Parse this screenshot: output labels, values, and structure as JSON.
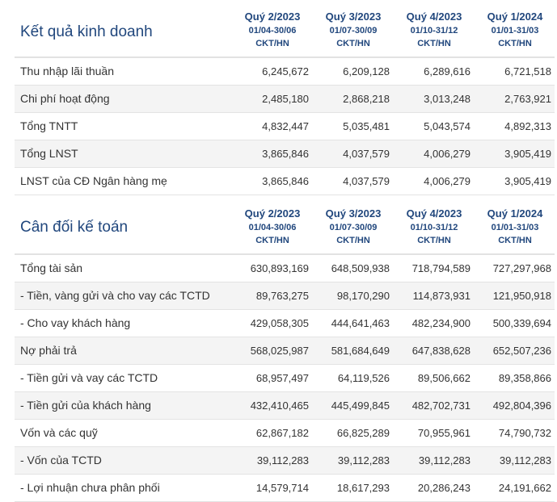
{
  "quarters": [
    {
      "name": "Quý 2/2023",
      "range": "01/04-30/06",
      "unit": "CKT/HN"
    },
    {
      "name": "Quý 3/2023",
      "range": "01/07-30/09",
      "unit": "CKT/HN"
    },
    {
      "name": "Quý 4/2023",
      "range": "01/10-31/12",
      "unit": "CKT/HN"
    },
    {
      "name": "Quý 1/2024",
      "range": "01/01-31/03",
      "unit": "CKT/HN"
    }
  ],
  "income": {
    "title": "Kết quả kinh doanh",
    "rows": [
      {
        "label": "Thu nhập lãi thuần",
        "values": [
          "6,245,672",
          "6,209,128",
          "6,289,616",
          "6,721,518"
        ]
      },
      {
        "label": "Chi phí hoạt động",
        "values": [
          "2,485,180",
          "2,868,218",
          "3,013,248",
          "2,763,921"
        ]
      },
      {
        "label": "Tổng TNTT",
        "values": [
          "4,832,447",
          "5,035,481",
          "5,043,574",
          "4,892,313"
        ]
      },
      {
        "label": "Tổng LNST",
        "values": [
          "3,865,846",
          "4,037,579",
          "4,006,279",
          "3,905,419"
        ]
      },
      {
        "label": "LNST của CĐ Ngân hàng mẹ",
        "values": [
          "3,865,846",
          "4,037,579",
          "4,006,279",
          "3,905,419"
        ]
      }
    ]
  },
  "balance": {
    "title": "Cân đối kế toán",
    "rows": [
      {
        "label": "Tổng tài sản",
        "values": [
          "630,893,169",
          "648,509,938",
          "718,794,589",
          "727,297,968"
        ]
      },
      {
        "label": "- Tiền, vàng gửi và cho vay các TCTD",
        "values": [
          "89,763,275",
          "98,170,290",
          "114,873,931",
          "121,950,918"
        ]
      },
      {
        "label": "- Cho vay khách hàng",
        "values": [
          "429,058,305",
          "444,641,463",
          "482,234,900",
          "500,339,694"
        ]
      },
      {
        "label": "Nợ phải trả",
        "values": [
          "568,025,987",
          "581,684,649",
          "647,838,628",
          "652,507,236"
        ]
      },
      {
        "label": "- Tiền gửi và vay các TCTD",
        "values": [
          "68,957,497",
          "64,119,526",
          "89,506,662",
          "89,358,866"
        ]
      },
      {
        "label": "- Tiền gửi của khách hàng",
        "values": [
          "432,410,465",
          "445,499,845",
          "482,702,731",
          "492,804,396"
        ]
      },
      {
        "label": "Vốn và các quỹ",
        "values": [
          "62,867,182",
          "66,825,289",
          "70,955,961",
          "74,790,732"
        ]
      },
      {
        "label": "- Vốn của TCTD",
        "values": [
          "39,112,283",
          "39,112,283",
          "39,112,283",
          "39,112,283"
        ]
      },
      {
        "label": "- Lợi nhuận chưa phân phối",
        "values": [
          "14,579,714",
          "18,617,293",
          "20,286,243",
          "24,191,662"
        ]
      }
    ]
  }
}
